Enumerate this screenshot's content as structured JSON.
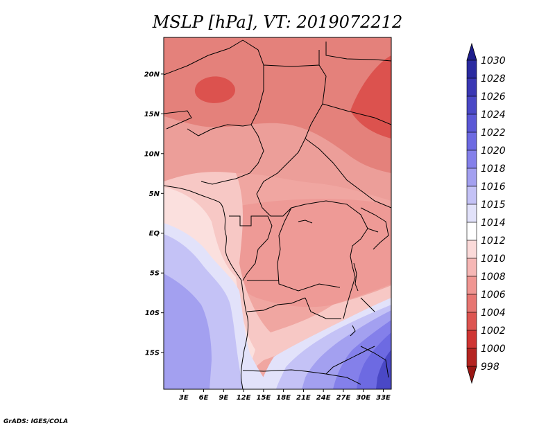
{
  "title": "MSLP [hPa], VT: 2019072212",
  "credit": "GrADS: IGES/COLA",
  "map": {
    "lat_ticks": [
      "20N",
      "15N",
      "10N",
      "5N",
      "EQ",
      "5S",
      "10S",
      "15S"
    ],
    "lon_ticks": [
      "3E",
      "6E",
      "9E",
      "12E",
      "15E",
      "18E",
      "21E",
      "24E",
      "27E",
      "30E",
      "33E"
    ],
    "lat_range": [
      -19.6,
      24.6
    ],
    "lon_range": [
      0,
      34.2
    ]
  },
  "colorbar": {
    "levels": [
      "1030",
      "1028",
      "1026",
      "1024",
      "1022",
      "1020",
      "1018",
      "1016",
      "1015",
      "1014",
      "1012",
      "1010",
      "1008",
      "1006",
      "1004",
      "1002",
      "1000",
      "998"
    ],
    "colors": [
      "#1e1e8c",
      "#2a2aa0",
      "#3a37b4",
      "#4a48c6",
      "#5b58d6",
      "#6d6ae2",
      "#8480ea",
      "#a3a0f0",
      "#c4c2f6",
      "#e2e2fa",
      "#ffffff",
      "#fbdad9",
      "#f6b7b5",
      "#f09692",
      "#e77672",
      "#dd5551",
      "#cf3533",
      "#b42421",
      "#9a1714"
    ]
  },
  "regions": {
    "north_far": "#e4817b",
    "north": "#ec9e99",
    "central": "#f0a6a1",
    "west_coast": "#f7c8c5",
    "west_coast_near": "#fbe0de",
    "hot_spot": "#dc524e",
    "ocean_light": "#e2e2fa",
    "ocean_mid": "#c4c2f6",
    "ocean_deep": "#a3a0f0",
    "ocean_deeper": "#8480ea",
    "south_high": "#6d6ae2",
    "south_higher": "#4a48c6"
  }
}
